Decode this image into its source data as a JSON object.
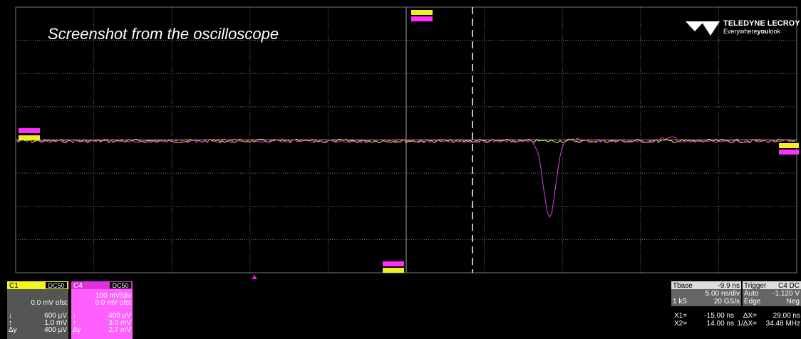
{
  "screen": {
    "title": "Screenshot from the oscilloscope",
    "brand": {
      "name": "TELEDYNE LECROY",
      "tagline_parts": [
        "Everywhere",
        "you",
        "look"
      ]
    }
  },
  "channels": [
    {
      "label": "C1",
      "coupling": "DC50",
      "lines": [
        "0.0 mV ofst"
      ],
      "rows": [
        [
          "↓",
          "600 µV"
        ],
        [
          "↑",
          "1.0 mV"
        ],
        [
          "Δy",
          "400 µV"
        ]
      ]
    },
    {
      "label": "C4",
      "coupling": "DC50",
      "lines": [
        "100 mV/div",
        "0.0 mV ofst"
      ],
      "rows": [
        [
          "↓",
          "400 µV"
        ],
        [
          "↑",
          "3.0 mV"
        ],
        [
          "Δy",
          "2.7 mV"
        ]
      ]
    }
  ],
  "timebase": {
    "label": "Tbase",
    "delay": "-9.9 ns",
    "scale": "5.00 ns/div",
    "samples": "1 kS",
    "rate": "20 GS/s"
  },
  "trigger": {
    "label": "Trigger",
    "source": "C4 DC",
    "mode": "Auto",
    "level": "-1.120 V",
    "type": "Edge",
    "slope": "Neg"
  },
  "cursors": [
    {
      "name": "X1=",
      "value": "-15.00 ns",
      "name2": "ΔX=",
      "value2": "29.00 ns"
    },
    {
      "name": "X2=",
      "value": "14.00 ns",
      "name2": "1/ΔX=",
      "value2": "34.48 MHz"
    }
  ]
}
